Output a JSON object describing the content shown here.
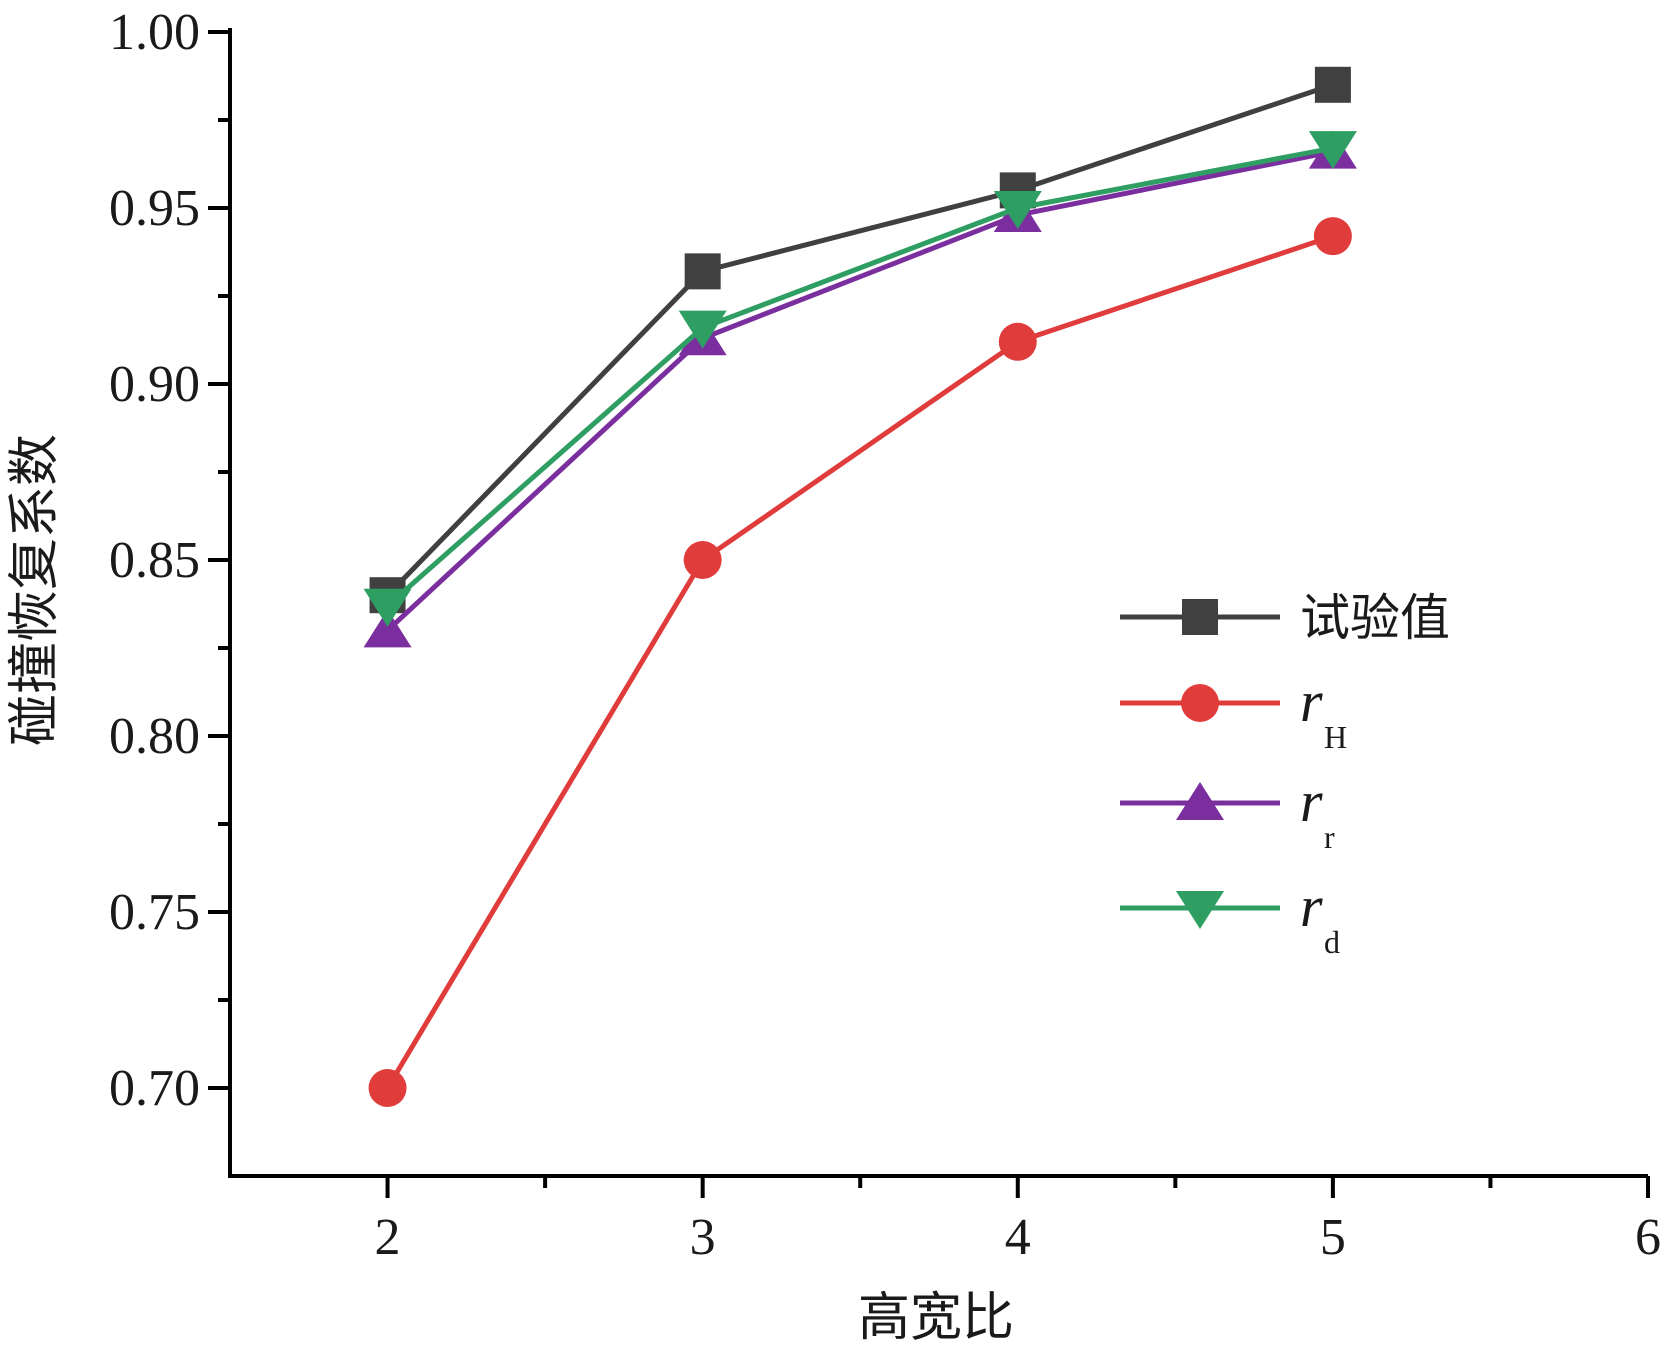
{
  "chart_data": {
    "type": "line",
    "title": "",
    "xlabel": "高宽比",
    "ylabel": "碰撞恢复系数",
    "xlim": [
      1.5,
      6
    ],
    "ylim": [
      0.675,
      1.0
    ],
    "x_ticks": [
      2,
      3,
      4,
      5,
      6
    ],
    "x_tick_labels": [
      "2",
      "3",
      "4",
      "5",
      "6"
    ],
    "y_ticks": [
      0.7,
      0.75,
      0.8,
      0.85,
      0.9,
      0.95,
      1.0
    ],
    "y_tick_labels": [
      "0.70",
      "0.75",
      "0.80",
      "0.85",
      "0.90",
      "0.95",
      "1.00"
    ],
    "grid": false,
    "legend_position": "right",
    "x": [
      2,
      3,
      4,
      5
    ],
    "series": [
      {
        "name": "试验值",
        "label_main": "试验值",
        "label_sub": "",
        "marker": "square",
        "color": "#404040",
        "values": [
          0.84,
          0.932,
          0.955,
          0.985
        ]
      },
      {
        "name": "r_H",
        "label_main": "r",
        "label_sub": "H",
        "marker": "circle",
        "color": "#e03c3c",
        "values": [
          0.7,
          0.85,
          0.912,
          0.942
        ]
      },
      {
        "name": "r_r",
        "label_main": "r",
        "label_sub": "r",
        "marker": "triangle-up",
        "color": "#7b2f9e",
        "values": [
          0.83,
          0.913,
          0.948,
          0.966
        ]
      },
      {
        "name": "r_d",
        "label_main": "r",
        "label_sub": "d",
        "marker": "triangle-down",
        "color": "#2e9e62",
        "values": [
          0.837,
          0.916,
          0.95,
          0.967
        ]
      }
    ]
  }
}
